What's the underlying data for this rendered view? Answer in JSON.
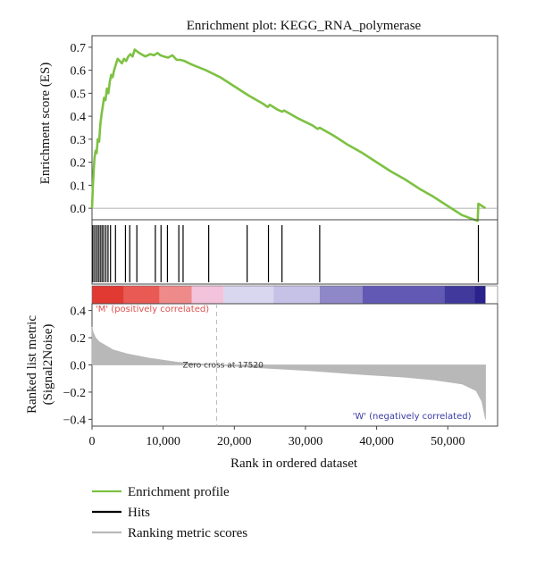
{
  "chart_data": {
    "type": "line",
    "title": "Enrichment plot: KEGG_RNA_polymerase",
    "xlabel": "Rank in ordered dataset",
    "xlim": [
      0,
      57000
    ],
    "xticks": [
      "0",
      "10,000",
      "20,000",
      "30,000",
      "40,000",
      "50,000"
    ],
    "es_panel": {
      "ylabel": "Enrichment score (ES)",
      "ylim": [
        -0.05,
        0.75
      ],
      "yticks": [
        "0.0",
        "0.1",
        "0.2",
        "0.3",
        "0.4",
        "0.5",
        "0.6",
        "0.7"
      ],
      "series": [
        {
          "name": "Enrichment profile",
          "color": "#7dc142",
          "x": [
            0,
            120,
            250,
            350,
            500,
            650,
            800,
            1000,
            1150,
            1300,
            1500,
            1700,
            1900,
            2100,
            2300,
            2500,
            2700,
            2900,
            3100,
            3300,
            3600,
            3900,
            4200,
            4500,
            4800,
            5100,
            5400,
            5700,
            6000,
            6400,
            6900,
            7500,
            8200,
            8700,
            9200,
            9600,
            10100,
            10700,
            11300,
            11900,
            12400,
            13000,
            14000,
            16000,
            18000,
            20000,
            22000,
            24000,
            24700,
            25000,
            26000,
            26700,
            27000,
            29000,
            31000,
            31700,
            32000,
            34000,
            36000,
            38000,
            40000,
            42000,
            44000,
            46000,
            48000,
            50000,
            52000,
            54200,
            54300,
            55300
          ],
          "y": [
            0.0,
            0.1,
            0.17,
            0.22,
            0.25,
            0.24,
            0.3,
            0.29,
            0.36,
            0.4,
            0.44,
            0.48,
            0.47,
            0.52,
            0.5,
            0.55,
            0.58,
            0.57,
            0.6,
            0.62,
            0.65,
            0.64,
            0.63,
            0.65,
            0.64,
            0.66,
            0.67,
            0.66,
            0.69,
            0.68,
            0.67,
            0.66,
            0.67,
            0.665,
            0.675,
            0.665,
            0.66,
            0.655,
            0.665,
            0.645,
            0.645,
            0.64,
            0.625,
            0.6,
            0.57,
            0.53,
            0.49,
            0.455,
            0.44,
            0.45,
            0.43,
            0.42,
            0.425,
            0.39,
            0.36,
            0.345,
            0.35,
            0.315,
            0.275,
            0.24,
            0.2,
            0.16,
            0.125,
            0.085,
            0.05,
            0.01,
            -0.03,
            -0.055,
            0.02,
            0.0
          ]
        }
      ]
    },
    "hits": {
      "name": "Hits",
      "color": "#000000",
      "x": [
        120,
        380,
        650,
        900,
        1150,
        1400,
        1650,
        1950,
        2250,
        2600,
        3300,
        4700,
        5300,
        6300,
        8900,
        9700,
        10600,
        12200,
        12800,
        16400,
        21800,
        24800,
        26700,
        32000,
        54300
      ]
    },
    "ranked_panel": {
      "ylabel_line1": "Ranked list metric",
      "ylabel_line2": "(Signal2Noise)",
      "ylim": [
        -0.45,
        0.45
      ],
      "yticks": [
        "0.4",
        "0.2",
        "0.0",
        "−0.2",
        "−0.4"
      ],
      "series": [
        {
          "name": "Ranking metric scores",
          "color": "#b8b8b8",
          "x": [
            0,
            150,
            500,
            1000,
            2000,
            3000,
            5000,
            8000,
            12000,
            17520,
            23000,
            30000,
            38000,
            44000,
            48000,
            52000,
            54000,
            54800,
            55300
          ],
          "y": [
            0.28,
            0.24,
            0.2,
            0.17,
            0.14,
            0.11,
            0.08,
            0.05,
            0.02,
            0.0,
            -0.02,
            -0.04,
            -0.07,
            -0.09,
            -0.11,
            -0.14,
            -0.19,
            -0.27,
            -0.4
          ]
        }
      ],
      "zero_cross_x": 17520,
      "zero_cross_label": "Zero cross at 17520",
      "positive_label": "'M' (positively correlated)",
      "negative_label": "'W' (negatively correlated)",
      "positive_label_color": "#e05050",
      "negative_label_color": "#3a3aa8"
    },
    "color_bar": {
      "segments": [
        {
          "from": 0,
          "to": 4500,
          "color": "#e13a33"
        },
        {
          "from": 4500,
          "to": 9500,
          "color": "#ea5a55"
        },
        {
          "from": 9500,
          "to": 14000,
          "color": "#ef8a8a"
        },
        {
          "from": 14000,
          "to": 18500,
          "color": "#f2c3da"
        },
        {
          "from": 18500,
          "to": 25500,
          "color": "#d9d7ef"
        },
        {
          "from": 25500,
          "to": 32000,
          "color": "#c6c1e7"
        },
        {
          "from": 32000,
          "to": 38000,
          "color": "#8e88c8"
        },
        {
          "from": 38000,
          "to": 49500,
          "color": "#6259b4"
        },
        {
          "from": 49500,
          "to": 53800,
          "color": "#413a9c"
        },
        {
          "from": 53800,
          "to": 55300,
          "color": "#2a238c"
        }
      ]
    },
    "legend": {
      "placement": "bottom-left",
      "items": [
        {
          "label": "Enrichment profile",
          "color": "#7dc142"
        },
        {
          "label": "Hits",
          "color": "#000000"
        },
        {
          "label": "Ranking metric scores",
          "color": "#b8b8b8"
        }
      ]
    },
    "grid": false
  }
}
